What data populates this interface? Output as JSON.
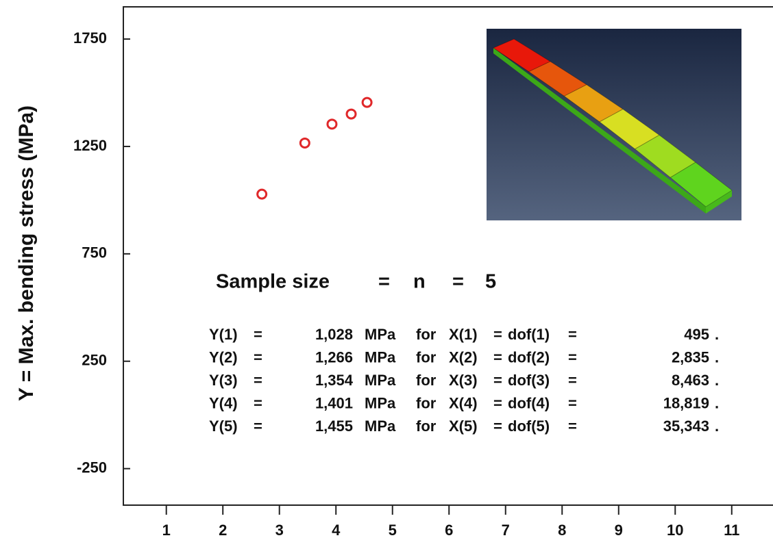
{
  "chart_data": {
    "type": "scatter",
    "y_label": "Y  =  Max. bending stress (MPa)",
    "x": [
      2.69,
      3.45,
      3.93,
      4.27,
      4.55
    ],
    "values": [
      1028,
      1266,
      1354,
      1401,
      1455
    ],
    "color": "#e0282a",
    "xlim": [
      0.24,
      11.73
    ],
    "xticks": [
      1,
      2,
      3,
      4,
      5,
      6,
      7,
      8,
      9,
      10,
      11
    ],
    "ylim": [
      -420,
      1900
    ],
    "yticks": [
      -250,
      250,
      750,
      1250,
      1750
    ],
    "annotation_header": [
      "Sample size",
      "=",
      "n",
      "=",
      "5"
    ],
    "annotation_rows": [
      [
        "Y(1)",
        "=",
        "1,028",
        "MPa",
        "for",
        "X(1)",
        "=",
        "dof(1)",
        "=",
        "495",
        "."
      ],
      [
        "Y(2)",
        "=",
        "1,266",
        "MPa",
        "for",
        "X(2)",
        "=",
        "dof(2)",
        "=",
        "2,835",
        "."
      ],
      [
        "Y(3)",
        "=",
        "1,354",
        "MPa",
        "for",
        "X(3)",
        "=",
        "dof(3)",
        "=",
        "8,463",
        "."
      ],
      [
        "Y(4)",
        "=",
        "1,401",
        "MPa",
        "for",
        "X(4)",
        "=",
        "dof(4)",
        "=",
        "18,819",
        "."
      ],
      [
        "Y(5)",
        "=",
        "1,455",
        "MPa",
        "for",
        "X(5)",
        "=",
        "dof(5)",
        "=",
        "35,343",
        "."
      ]
    ]
  }
}
